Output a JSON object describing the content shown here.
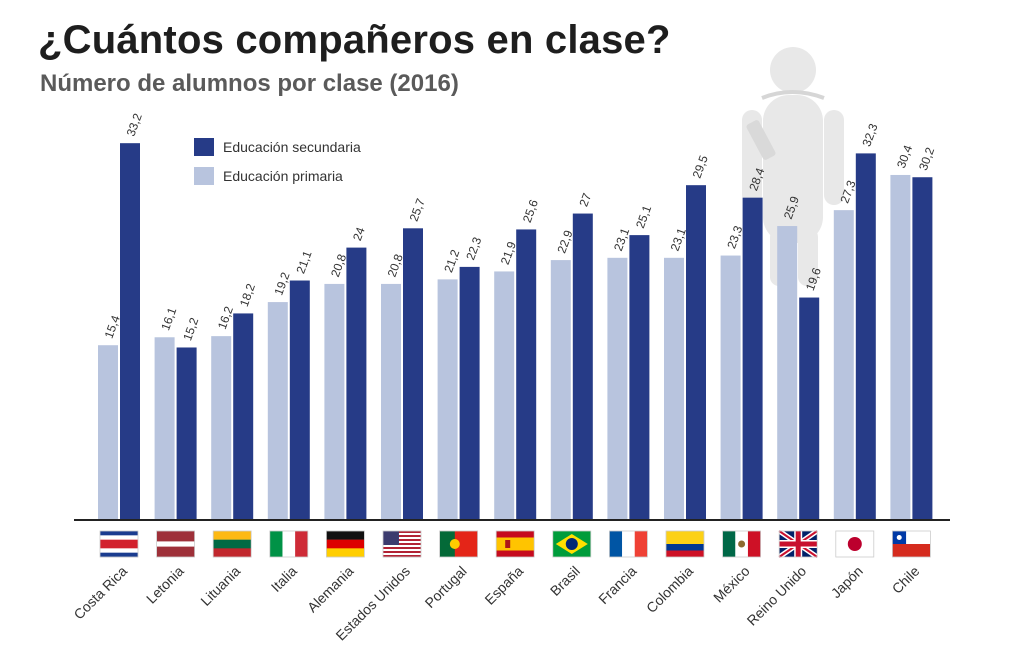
{
  "header": {
    "title": "¿Cuántos compañeros en clase?",
    "subtitle": "Número de alumnos por clase (2016)"
  },
  "colors": {
    "primaria": "#b8c4de",
    "secundaria": "#263b87",
    "figure": "#e8e8e8",
    "axis": "#222222"
  },
  "chart_data": {
    "type": "bar",
    "title": "¿Cuántos compañeros en clase?",
    "subtitle": "Número de alumnos por clase (2016)",
    "xlabel": "",
    "ylabel": "",
    "ylim": [
      0,
      34
    ],
    "grid": false,
    "legend": "top-left",
    "categories": [
      "Costa Rica",
      "Letonia",
      "Lituania",
      "Italia",
      "Alemania",
      "Estados Unidos",
      "Portugal",
      "España",
      "Brasil",
      "Francia",
      "Colombia",
      "México",
      "Reino Unido",
      "Japón",
      "Chile"
    ],
    "series": [
      {
        "name": "Educación primaria",
        "values": [
          15.4,
          16.1,
          16.2,
          19.2,
          20.8,
          20.8,
          21.2,
          21.9,
          22.9,
          23.1,
          23.1,
          23.3,
          25.9,
          27.3,
          30.4
        ],
        "labels": [
          "15,4",
          "16,1",
          "16,2",
          "19,2",
          "20,8",
          "20,8",
          "21,2",
          "21,9",
          "22,9",
          "23,1",
          "23,1",
          "23,3",
          "25,9",
          "27,3",
          "30,4"
        ]
      },
      {
        "name": "Educación secundaria",
        "values": [
          33.2,
          15.2,
          18.2,
          21.1,
          24,
          25.7,
          22.3,
          25.6,
          27,
          25.1,
          29.5,
          28.4,
          19.6,
          32.3,
          30.2
        ],
        "labels": [
          "33,2",
          "15,2",
          "18,2",
          "21,1",
          "24",
          "25,7",
          "22,3",
          "25,6",
          "27",
          "25,1",
          "29,5",
          "28,4",
          "19,6",
          "32,3",
          "30,2"
        ]
      }
    ],
    "flags": [
      "costa-rica",
      "latvia",
      "lithuania",
      "italy",
      "germany",
      "usa",
      "portugal",
      "spain",
      "brazil",
      "france",
      "colombia",
      "mexico",
      "uk",
      "japan",
      "chile"
    ]
  }
}
